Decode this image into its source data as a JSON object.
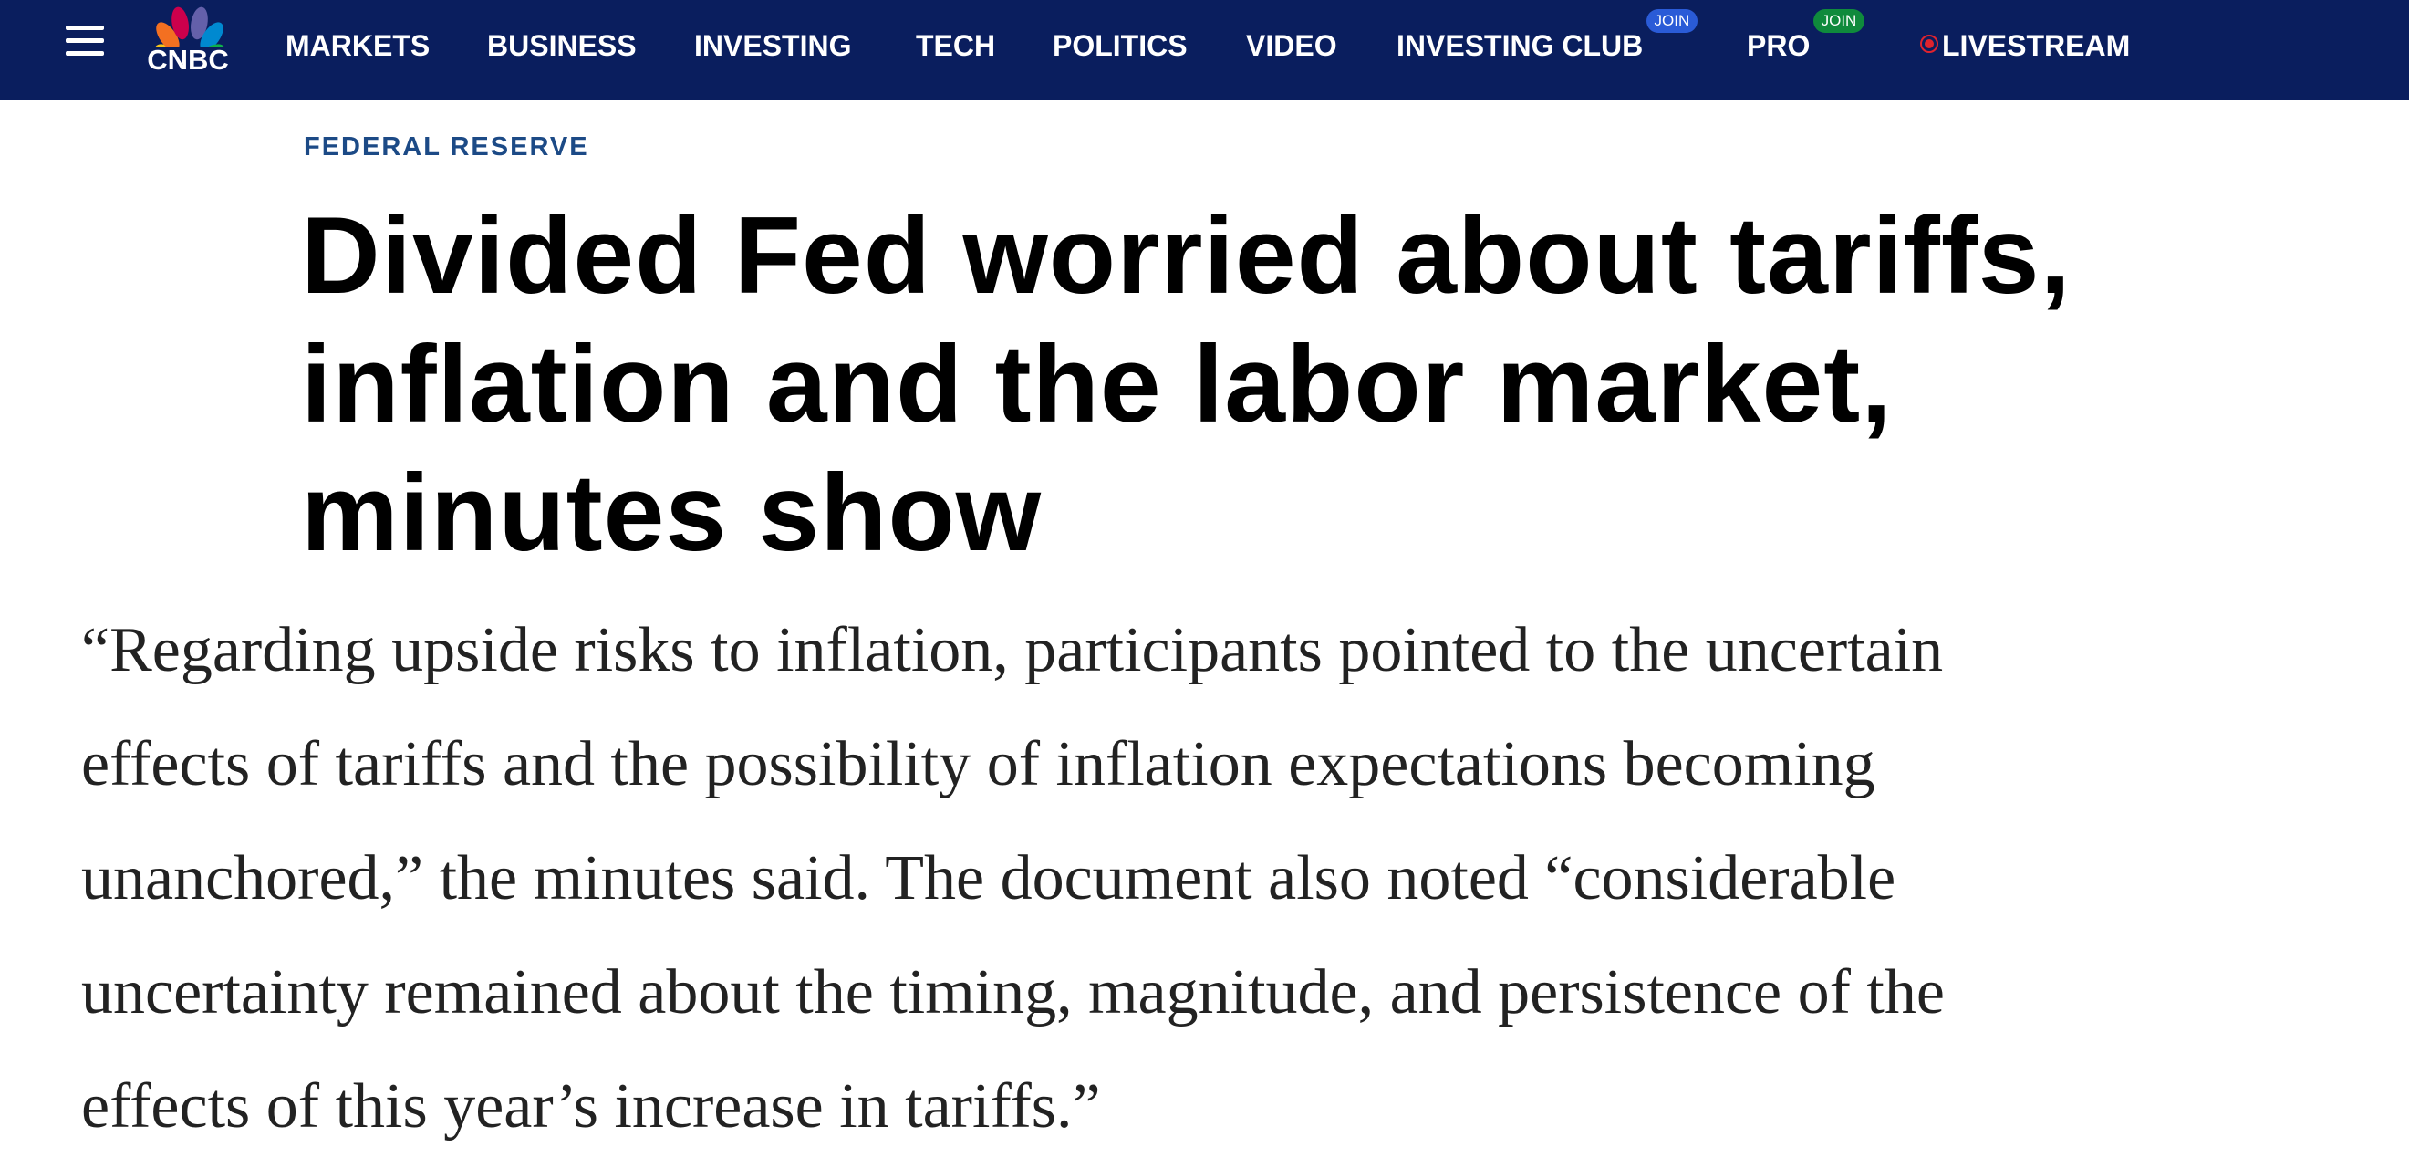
{
  "header": {
    "logo": "CNBC",
    "nav": [
      {
        "label": "MARKETS"
      },
      {
        "label": "BUSINESS"
      },
      {
        "label": "INVESTING"
      },
      {
        "label": "TECH"
      },
      {
        "label": "POLITICS"
      },
      {
        "label": "VIDEO"
      },
      {
        "label": "INVESTING CLUB",
        "badge": "JOIN"
      },
      {
        "label": "PRO",
        "badge": "JOIN"
      },
      {
        "label": "LIVESTREAM"
      }
    ]
  },
  "article": {
    "kicker": "FEDERAL RESERVE",
    "headline_lines": [
      "Divided Fed worried about tariffs,",
      "inflation and the labor market,",
      "minutes show"
    ],
    "body_lines": [
      "“Regarding upside risks to inflation, participants pointed to the uncertain",
      "effects of tariffs and the possibility of inflation expectations becoming",
      "unanchored,” the minutes said. The document also noted “considerable",
      "uncertainty remained about the timing, magnitude, and persistence of the",
      "effects of this year’s increase in tariffs.”"
    ]
  }
}
